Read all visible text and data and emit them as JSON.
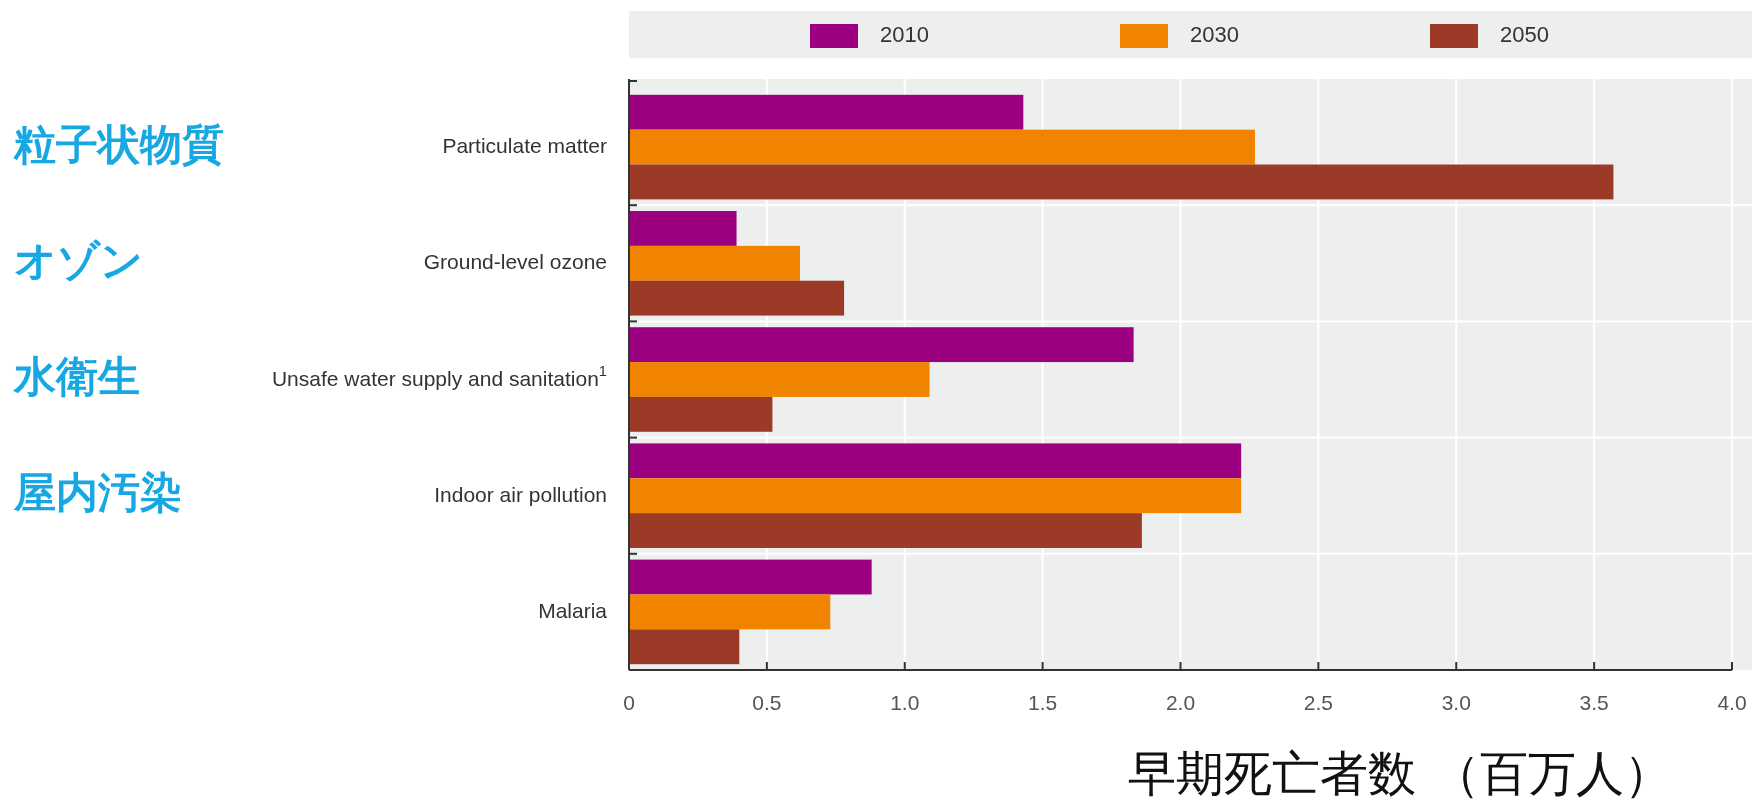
{
  "chart_data": {
    "type": "bar",
    "orientation": "horizontal",
    "categories": [
      "Particulate matter",
      "Ground-level ozone",
      "Unsafe water supply and sanitation$^{1}$",
      "Indoor air pollution",
      "Malaria"
    ],
    "series": [
      {
        "name": "2010",
        "color": "#9b0080",
        "values": [
          1.43,
          0.39,
          1.83,
          2.22,
          0.88
        ]
      },
      {
        "name": "2030",
        "color": "#f08300",
        "values": [
          2.27,
          0.62,
          1.09,
          2.22,
          0.73
        ]
      },
      {
        "name": "2050",
        "color": "#9c3a28",
        "values": [
          3.57,
          0.78,
          0.52,
          1.86,
          0.4
        ]
      }
    ],
    "xlim": [
      0,
      4
    ],
    "xticks": [
      0,
      0.5,
      {
        "value": 1,
        "label": "1.0"
      },
      1.5,
      {
        "value": 2,
        "label": "2.0"
      },
      2.5,
      {
        "value": 3,
        "label": "3.0"
      },
      3.5,
      {
        "value": 4,
        "label": "4.0"
      }
    ],
    "xlabel": "早期死亡者数 （百万人）",
    "annotations": [
      "粒子状物質",
      "オゾン",
      "水衛生",
      "屋内汚染"
    ],
    "grid": "x",
    "legend": "top"
  }
}
